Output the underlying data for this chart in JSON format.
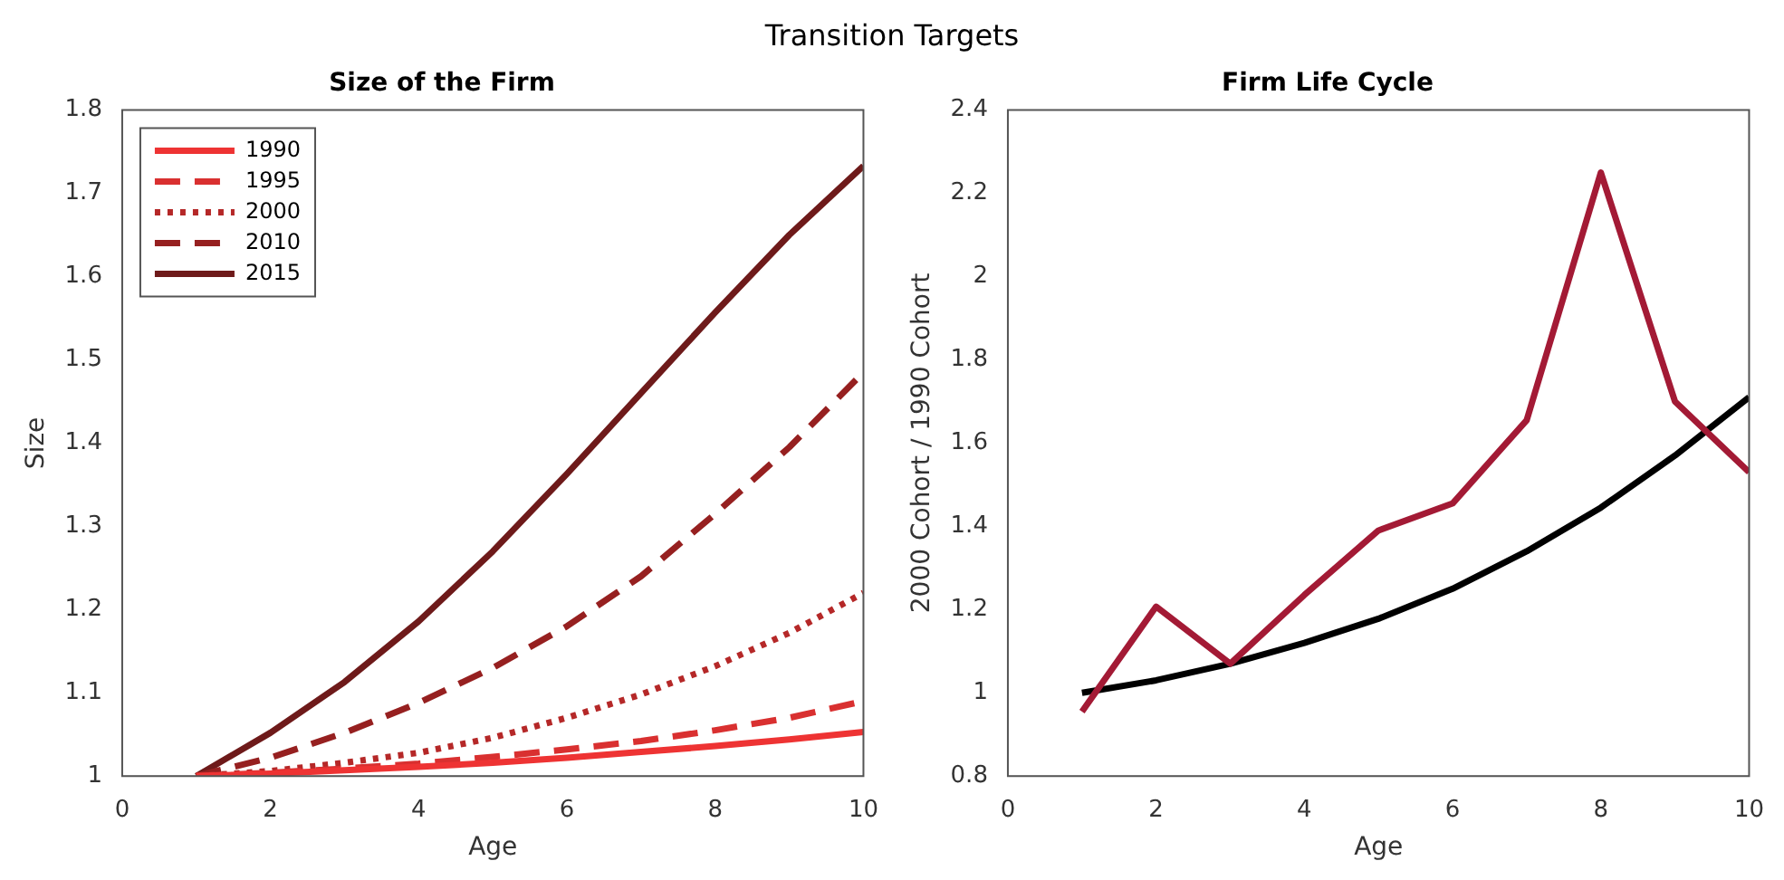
{
  "chart_data": [
    {
      "type": "line",
      "title": "Size of the Firm",
      "annotations": [
        "Transition Targets"
      ],
      "xlabel": "Age",
      "ylabel": "Size",
      "x": [
        1,
        2,
        3,
        4,
        5,
        6,
        7,
        8,
        9,
        10
      ],
      "xlim": [
        0,
        10
      ],
      "xticks": [
        0,
        2,
        4,
        6,
        8,
        10
      ],
      "ylim": [
        1,
        1.8
      ],
      "yticks": [
        1,
        1.1,
        1.2,
        1.3,
        1.4,
        1.5,
        1.6,
        1.7,
        1.8
      ],
      "grid": false,
      "legend": "top left",
      "marker": "none",
      "series": [
        {
          "name": "1990",
          "color": "#ee3333",
          "line_style": "solid",
          "values": [
            1,
            1.003,
            1.007,
            1.011,
            1.016,
            1.022,
            1.029,
            1.036,
            1.044,
            1.053
          ]
        },
        {
          "name": "1995",
          "color": "#d93030",
          "line_style": "dashed",
          "values": [
            1,
            1.004,
            1.009,
            1.015,
            1.023,
            1.032,
            1.042,
            1.055,
            1.07,
            1.09
          ]
        },
        {
          "name": "2000",
          "color": "#b52828",
          "line_style": "dotted",
          "values": [
            1,
            1.006,
            1.016,
            1.028,
            1.046,
            1.07,
            1.098,
            1.132,
            1.172,
            1.22
          ]
        },
        {
          "name": "2010",
          "color": "#962020",
          "line_style": "dashed",
          "values": [
            1,
            1.022,
            1.052,
            1.088,
            1.13,
            1.18,
            1.24,
            1.315,
            1.395,
            1.485
          ]
        },
        {
          "name": "2015",
          "color": "#6e1a1a",
          "line_style": "solid",
          "values": [
            1,
            1.052,
            1.113,
            1.186,
            1.27,
            1.363,
            1.46,
            1.557,
            1.65,
            1.733
          ]
        }
      ]
    },
    {
      "type": "line",
      "title": "Firm Life Cycle",
      "xlabel": "Age",
      "ylabel": "2000 Cohort / 1990 Cohort",
      "x": [
        1,
        2,
        3,
        4,
        5,
        6,
        7,
        8,
        9,
        10
      ],
      "xlim": [
        0,
        10
      ],
      "xticks": [
        0,
        2,
        4,
        6,
        8,
        10
      ],
      "ylim": [
        0.8,
        2.4
      ],
      "yticks": [
        0.8,
        1,
        1.2,
        1.4,
        1.6,
        1.8,
        2,
        2.2,
        2.4
      ],
      "grid": false,
      "legend": false,
      "marker": "none",
      "series": [
        {
          "color": "#a31a35",
          "line_style": "solid",
          "values": [
            0.955,
            1.207,
            1.07,
            1.235,
            1.39,
            1.455,
            1.655,
            2.25,
            1.7,
            1.53
          ]
        },
        {
          "color": "#000000",
          "line_style": "solid",
          "values": [
            1,
            1.03,
            1.07,
            1.12,
            1.178,
            1.25,
            1.34,
            1.445,
            1.57,
            1.71
          ]
        }
      ]
    }
  ]
}
